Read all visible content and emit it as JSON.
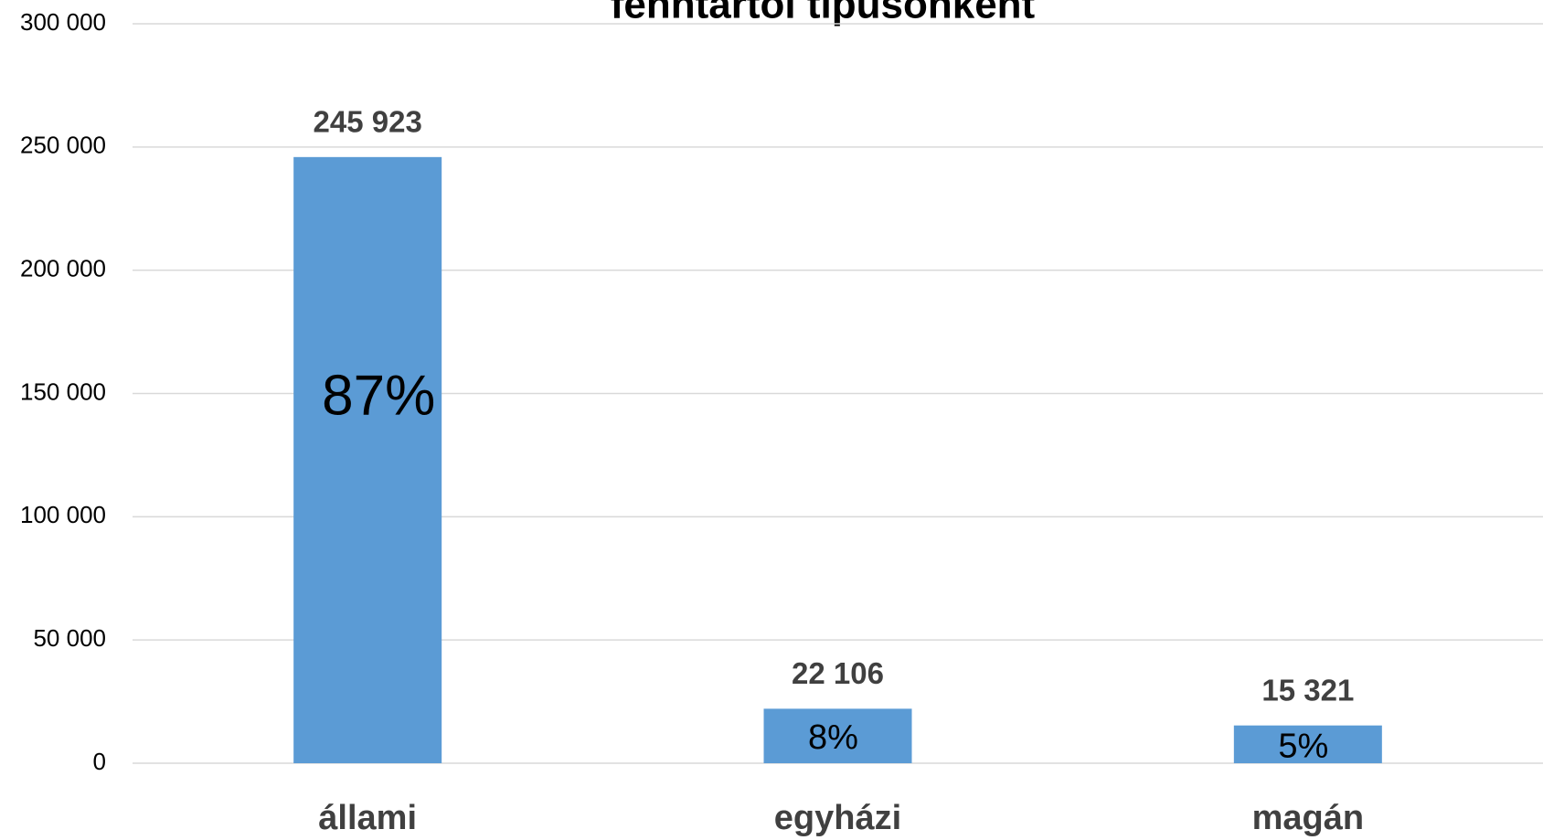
{
  "chart_data": {
    "type": "bar",
    "title": "fenntartói típusonként",
    "categories": [
      "állami",
      "egyházi",
      "magán"
    ],
    "values": [
      245923,
      22106,
      15321
    ],
    "value_labels": [
      "245 923",
      "22 106",
      "15 321"
    ],
    "shares": [
      87,
      8,
      5
    ],
    "share_labels": [
      "87%",
      "8%",
      "5%"
    ],
    "color": "#5b9bd5",
    "ylim": [
      0,
      300000
    ],
    "yticks": [
      0,
      {
        "value": 50000,
        "label": "50 000"
      },
      {
        "value": 100000,
        "label": "100 000"
      },
      {
        "value": 150000,
        "label": "150 000"
      },
      {
        "value": 200000,
        "label": "200 000"
      },
      {
        "value": 250000,
        "label": "250 000"
      },
      {
        "value": 300000,
        "label": "300 000"
      }
    ],
    "grid": true
  }
}
